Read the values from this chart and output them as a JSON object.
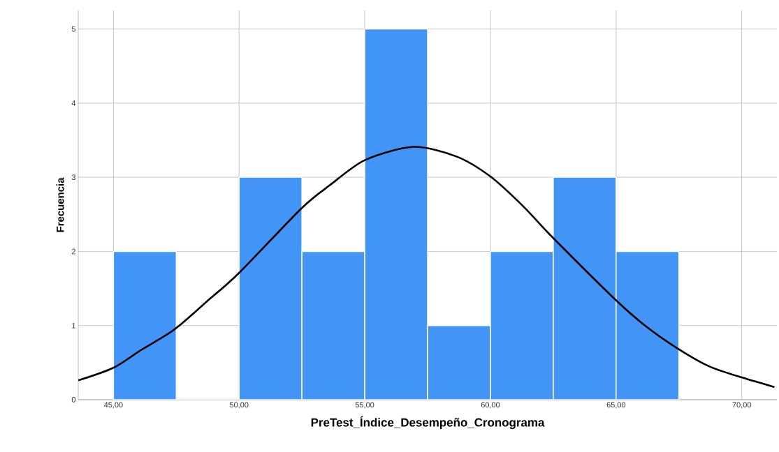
{
  "chart_data": {
    "type": "histogram",
    "xlabel": "PreTest_Índice_Desempeño_Cronograma",
    "ylabel": "Frecuencia",
    "bins": [
      45,
      47.5,
      50,
      52.5,
      55,
      57.5,
      60,
      62.5,
      65,
      67.5
    ],
    "values": [
      2,
      0,
      3,
      2,
      5,
      1,
      2,
      3,
      2
    ],
    "color": "#4394f7",
    "series": [
      {
        "type": "line",
        "color": "#000000",
        "x": [
          43.6,
          45,
          46.1,
          47.4,
          48.7,
          50,
          52.48,
          53.6,
          55,
          56.93,
          58.65,
          60,
          61.3,
          62.5,
          65,
          66.15,
          67.45,
          68.7,
          70,
          71.3
        ],
        "values": [
          0.26,
          0.43,
          0.67,
          0.94,
          1.32,
          1.71,
          2.58,
          2.89,
          3.23,
          3.41,
          3.28,
          3.01,
          2.61,
          2.18,
          1.34,
          1.0,
          0.69,
          0.45,
          0.3,
          0.17
        ]
      }
    ],
    "xlim": [
      43.6,
      71.4
    ],
    "ylim": [
      0,
      5.25
    ],
    "xticks": [
      {
        "value": 45,
        "label": "45,00"
      },
      {
        "value": 50,
        "label": "50,00"
      },
      {
        "value": 55,
        "label": "55,00"
      },
      {
        "value": 60,
        "label": "60,00"
      },
      {
        "value": 65,
        "label": "65,00"
      },
      {
        "value": 70,
        "label": "70,00"
      }
    ],
    "yticks": [
      0,
      1,
      2,
      3,
      4,
      5
    ],
    "grid": true
  }
}
